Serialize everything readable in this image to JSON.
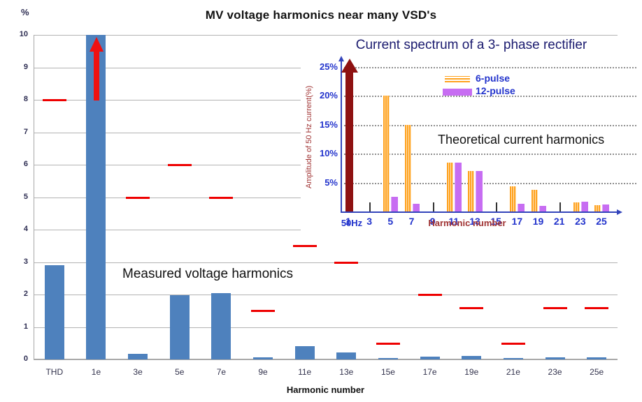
{
  "page_title": "MV voltage harmonics near many VSD's",
  "chart_data": [
    {
      "type": "bar",
      "title": "MV voltage harmonics near many VSD's",
      "xlabel": "Harmonic number",
      "ylabel": "%",
      "ylim": [
        0,
        10
      ],
      "yticks": [
        0,
        1,
        2,
        3,
        4,
        5,
        6,
        7,
        8,
        9,
        10
      ],
      "grid": "horizontal solid gray",
      "annotation": "Measured voltage harmonics",
      "categories": [
        "THD",
        "1e",
        "3e",
        "5e",
        "7e",
        "9e",
        "11e",
        "13e",
        "15e",
        "17e",
        "19e",
        "21e",
        "23e",
        "25e"
      ],
      "series": [
        {
          "name": "Measured voltage harmonics",
          "color": "#4e81bd",
          "values": [
            2.9,
            10,
            0.18,
            1.97,
            2.05,
            0.07,
            0.4,
            0.22,
            0.05,
            0.08,
            0.1,
            0.05,
            0.06,
            0.07
          ]
        },
        {
          "name": "Limit markers (red dashes)",
          "color": "#ee0000",
          "values": [
            8,
            null,
            5,
            6,
            5,
            1.5,
            3.5,
            3,
            0.5,
            2,
            1.6,
            0.5,
            1.6,
            1.6
          ]
        }
      ],
      "notes": "1e bar is clipped at 10% with a red upward arrow indicating it goes off-scale"
    },
    {
      "type": "bar",
      "title": "Current spectrum of a 3- phase rectifier",
      "xlabel": "Harmonic number",
      "ylabel": "Amplitude of 50 Hz current(%)",
      "ylim": [
        0,
        27
      ],
      "yticks": [
        5,
        10,
        15,
        20,
        25
      ],
      "ytick_labels": [
        "5%",
        "10%",
        "15%",
        "20%",
        "25%"
      ],
      "grid": "horizontal dotted gray",
      "legend_position": "upper area inside plot",
      "annotation": "Theoretical current harmonics",
      "fundamental_label": "50Hz",
      "fundamental_note": "dark red arrow at harmonic 1 going off-scale (100% fundamental)",
      "x": [
        1,
        3,
        5,
        7,
        9,
        11,
        13,
        15,
        17,
        19,
        21,
        23,
        25
      ],
      "series": [
        {
          "name": "6-pulse",
          "color": "#ffa21f",
          "values": [
            null,
            null,
            20,
            15,
            null,
            8.5,
            7,
            null,
            4.3,
            3.7,
            null,
            1.6,
            1.1
          ]
        },
        {
          "name": "12-pulse",
          "color": "#c76df2",
          "values": [
            null,
            null,
            2.5,
            1.3,
            null,
            8.5,
            7,
            null,
            1.3,
            1.0,
            null,
            1.7,
            1.2
          ]
        }
      ],
      "minor_ticks_at": [
        3,
        9,
        15,
        21
      ]
    }
  ]
}
